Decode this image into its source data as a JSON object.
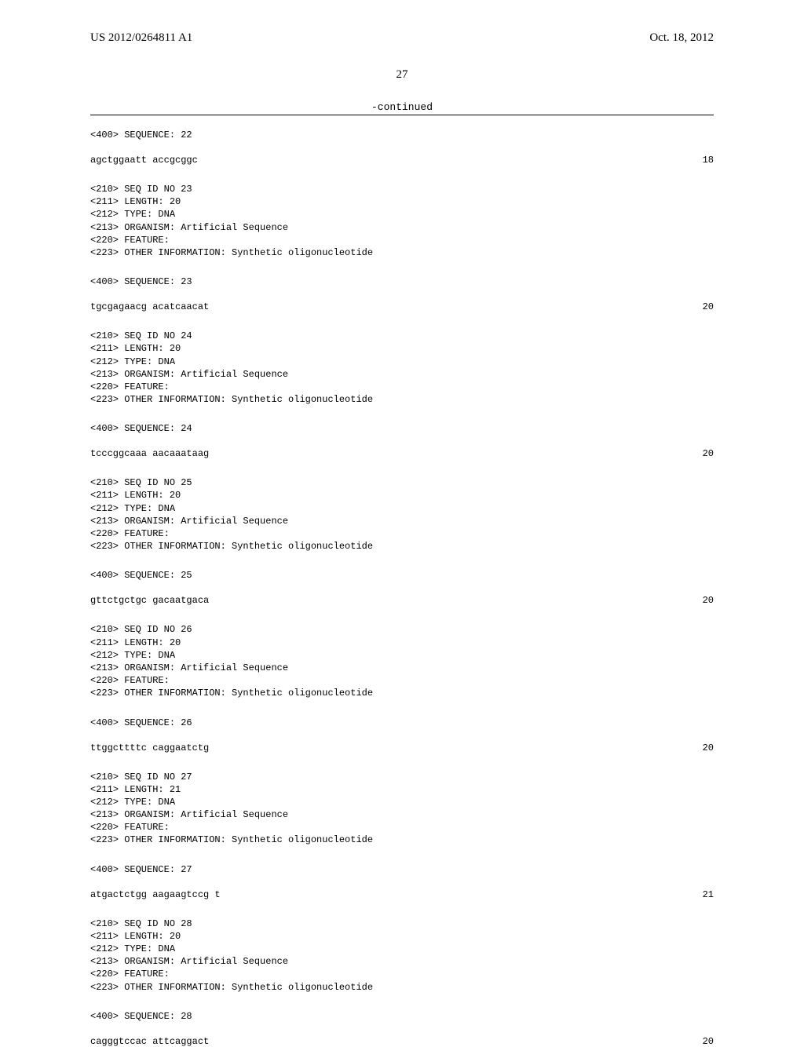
{
  "header": {
    "left": "US 2012/0264811 A1",
    "right": "Oct. 18, 2012"
  },
  "page_number": "27",
  "continued_label": "-continued",
  "sequences": [
    {
      "header_lines": [
        "<400> SEQUENCE: 22"
      ],
      "seq_text": "agctggaatt accgcggc",
      "seq_num": "18"
    },
    {
      "header_lines": [
        "<210> SEQ ID NO 23",
        "<211> LENGTH: 20",
        "<212> TYPE: DNA",
        "<213> ORGANISM: Artificial Sequence",
        "<220> FEATURE:",
        "<223> OTHER INFORMATION: Synthetic oligonucleotide"
      ],
      "subheader": "<400> SEQUENCE: 23",
      "seq_text": "tgcgagaacg acatcaacat",
      "seq_num": "20"
    },
    {
      "header_lines": [
        "<210> SEQ ID NO 24",
        "<211> LENGTH: 20",
        "<212> TYPE: DNA",
        "<213> ORGANISM: Artificial Sequence",
        "<220> FEATURE:",
        "<223> OTHER INFORMATION: Synthetic oligonucleotide"
      ],
      "subheader": "<400> SEQUENCE: 24",
      "seq_text": "tcccggcaaa aacaaataag",
      "seq_num": "20"
    },
    {
      "header_lines": [
        "<210> SEQ ID NO 25",
        "<211> LENGTH: 20",
        "<212> TYPE: DNA",
        "<213> ORGANISM: Artificial Sequence",
        "<220> FEATURE:",
        "<223> OTHER INFORMATION: Synthetic oligonucleotide"
      ],
      "subheader": "<400> SEQUENCE: 25",
      "seq_text": "gttctgctgc gacaatgaca",
      "seq_num": "20"
    },
    {
      "header_lines": [
        "<210> SEQ ID NO 26",
        "<211> LENGTH: 20",
        "<212> TYPE: DNA",
        "<213> ORGANISM: Artificial Sequence",
        "<220> FEATURE:",
        "<223> OTHER INFORMATION: Synthetic oligonucleotide"
      ],
      "subheader": "<400> SEQUENCE: 26",
      "seq_text": "ttggcttttc caggaatctg",
      "seq_num": "20"
    },
    {
      "header_lines": [
        "<210> SEQ ID NO 27",
        "<211> LENGTH: 21",
        "<212> TYPE: DNA",
        "<213> ORGANISM: Artificial Sequence",
        "<220> FEATURE:",
        "<223> OTHER INFORMATION: Synthetic oligonucleotide"
      ],
      "subheader": "<400> SEQUENCE: 27",
      "seq_text": "atgactctgg aagaagtccg t",
      "seq_num": "21"
    },
    {
      "header_lines": [
        "<210> SEQ ID NO 28",
        "<211> LENGTH: 20",
        "<212> TYPE: DNA",
        "<213> ORGANISM: Artificial Sequence",
        "<220> FEATURE:",
        "<223> OTHER INFORMATION: Synthetic oligonucleotide"
      ],
      "subheader": "<400> SEQUENCE: 28",
      "seq_text": "cagggtccac attcaggact",
      "seq_num": "20"
    }
  ]
}
